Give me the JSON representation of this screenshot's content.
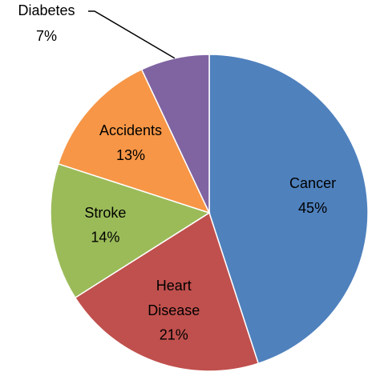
{
  "chart_data": {
    "type": "pie",
    "categories": [
      "Cancer",
      "Heart Disease",
      "Stroke",
      "Accidents",
      "Diabetes"
    ],
    "values": [
      45,
      21,
      14,
      13,
      7
    ],
    "value_labels": [
      "45%",
      "21%",
      "14%",
      "13%",
      "7%"
    ],
    "colors": [
      "#4f81bd",
      "#c0504d",
      "#9bbb59",
      "#f79646",
      "#8064a2"
    ]
  }
}
